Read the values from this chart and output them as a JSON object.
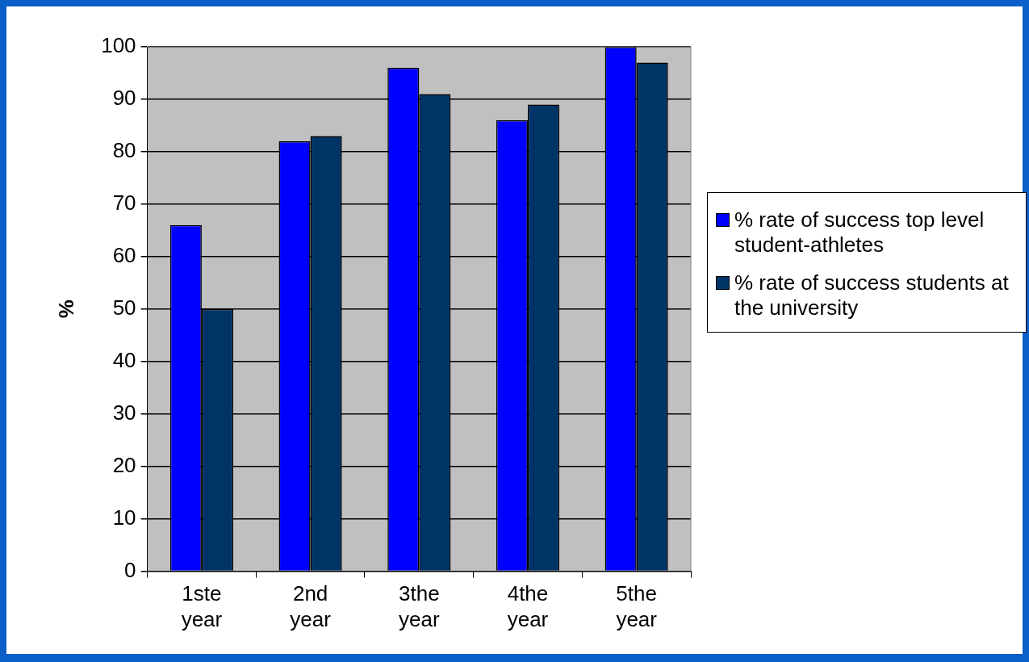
{
  "chart_data": {
    "type": "bar",
    "ylabel": "%",
    "categories": [
      "1ste year",
      "2nd year",
      "3the year",
      "4the year",
      "5the year"
    ],
    "series": [
      {
        "name": "% rate of success top level student-athletes",
        "color": "#0000ff",
        "values": [
          66,
          82,
          96,
          86,
          100
        ]
      },
      {
        "name": "% rate of success students at the university",
        "color": "#003366",
        "values": [
          50,
          83,
          91,
          89,
          97
        ]
      }
    ],
    "ylim": [
      0,
      100
    ],
    "yticks": [
      0,
      10,
      20,
      30,
      40,
      50,
      60,
      70,
      80,
      90,
      100
    ],
    "grid": "y",
    "legend": "right"
  }
}
